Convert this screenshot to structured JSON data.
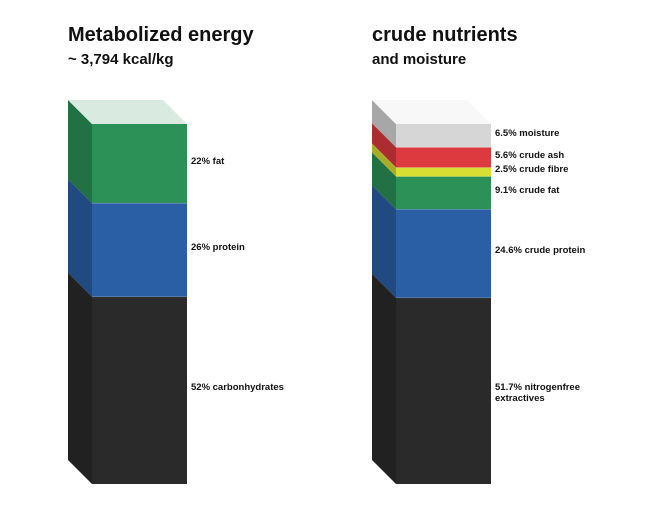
{
  "chart_data": [
    {
      "type": "stacked-column-3d",
      "title": "Metabolized energy",
      "subtitle": "~ 3,794 kcal/kg",
      "segments": [
        {
          "label": [
            "52% carbonhydrates"
          ],
          "value": 52,
          "color": "#2a2a2a"
        },
        {
          "label": [
            "26% protein"
          ],
          "value": 26,
          "color": "#2a5fa5"
        },
        {
          "label": [
            "22% fat"
          ],
          "value": 22,
          "color": "#2b9157"
        }
      ]
    },
    {
      "type": "stacked-column-3d",
      "title": "crude nutrients",
      "subtitle": "and moisture",
      "segments": [
        {
          "label": [
            "51.7% nitrogenfree",
            "extractives"
          ],
          "value": 51.7,
          "color": "#2a2a2a"
        },
        {
          "label": [
            "24.6% crude protein"
          ],
          "value": 24.6,
          "color": "#2a5fa5"
        },
        {
          "label": [
            "9.1% crude fat"
          ],
          "value": 9.1,
          "color": "#2b9157"
        },
        {
          "label": [
            "2.5% crude fibre"
          ],
          "value": 2.5,
          "color": "#d8de32"
        },
        {
          "label": [
            "5.6% crude ash"
          ],
          "value": 5.6,
          "color": "#dc3a3e"
        },
        {
          "label": [
            "6.5% moisture"
          ],
          "value": 6.5,
          "color": "#d6d6d6"
        }
      ]
    }
  ]
}
